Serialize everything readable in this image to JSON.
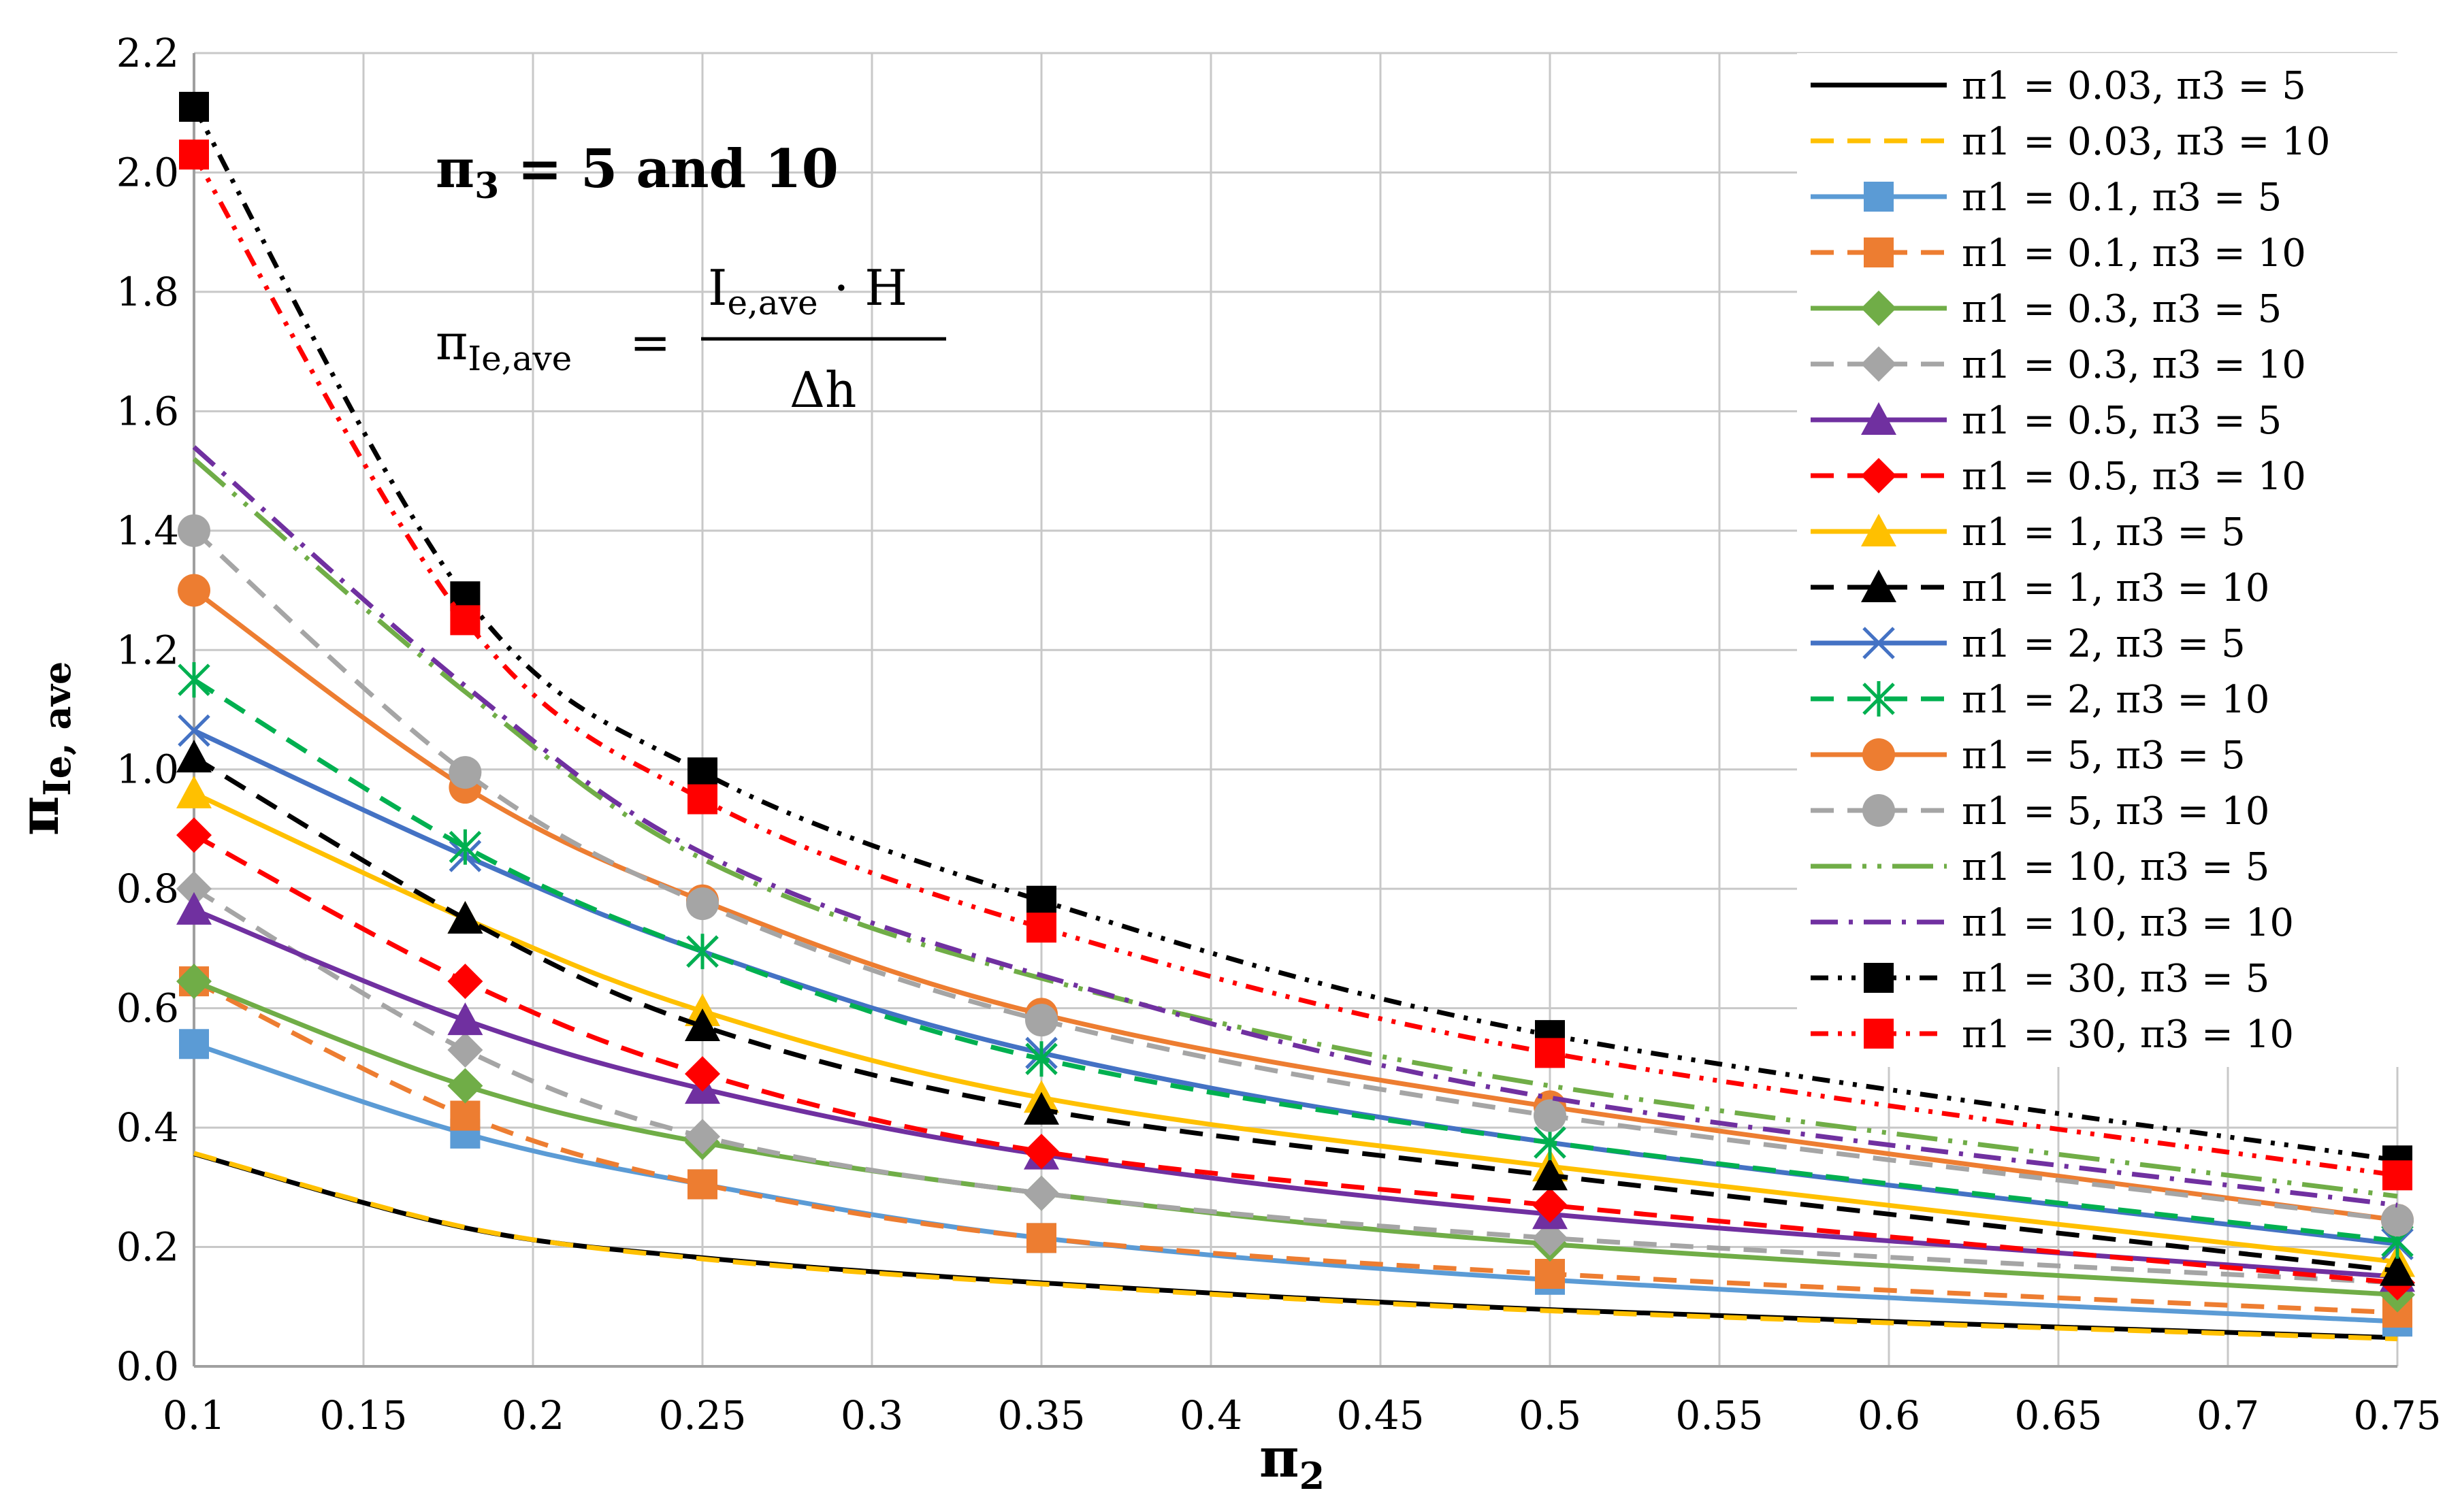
{
  "chart_data": {
    "type": "line",
    "title": "",
    "xlabel": "π2",
    "xlabel_main": "π",
    "xlabel_sub": "2",
    "ylabel": "πIe, ave",
    "ylabel_main": "π",
    "ylabel_sub": "Ie, ave",
    "xlim": [
      0.1,
      0.75
    ],
    "ylim": [
      0.0,
      2.2
    ],
    "xticks": [
      "0.1",
      "0.15",
      "0.2",
      "0.25",
      "0.3",
      "0.35",
      "0.4",
      "0.45",
      "0.5",
      "0.55",
      "0.6",
      "0.65",
      "0.7",
      "0.75"
    ],
    "yticks": [
      "0.0",
      "0.2",
      "0.4",
      "0.6",
      "0.8",
      "1.0",
      "1.2",
      "1.4",
      "1.6",
      "1.8",
      "2.0",
      "2.2"
    ],
    "grid": true,
    "legend_position": "right",
    "annotations": {
      "pi3_main": "π",
      "pi3_sub": "3",
      "pi3_rest": " = 5 and 10",
      "formula_lhs_main": "π",
      "formula_lhs_sub": "Ie,ave",
      "formula_eq": "=",
      "formula_num_main": "I",
      "formula_num_sub": "e,ave",
      "formula_num_rest": " · H",
      "formula_den": "Δh"
    },
    "x": [
      0.1,
      0.18,
      0.25,
      0.35,
      0.5,
      0.75
    ],
    "series": [
      {
        "name": "π1 = 0.03, π3 = 5",
        "color": "#000000",
        "dash": "solid",
        "marker": "none",
        "values": [
          0.356,
          0.232,
          0.182,
          0.14,
          0.095,
          0.048
        ]
      },
      {
        "name": "π1 = 0.03, π3 = 10",
        "color": "#ffc000",
        "dash": "dash",
        "marker": "none",
        "values": [
          0.357,
          0.233,
          0.18,
          0.138,
          0.093,
          0.046
        ]
      },
      {
        "name": "π1  = 0.1, π3 = 5",
        "color": "#5b9bd5",
        "dash": "solid",
        "marker": "square",
        "values": [
          0.54,
          0.39,
          0.305,
          0.215,
          0.145,
          0.075
        ]
      },
      {
        "name": "π1 = 0.1, π3 = 10",
        "color": "#ed7d31",
        "dash": "dash",
        "marker": "square",
        "values": [
          0.645,
          0.42,
          0.305,
          0.215,
          0.155,
          0.09
        ]
      },
      {
        "name": "π1 = 0.3, π3 = 5",
        "color": "#70ad47",
        "dash": "solid",
        "marker": "diamond",
        "values": [
          0.645,
          0.47,
          0.375,
          0.29,
          0.205,
          0.12
        ]
      },
      {
        "name": "π1 = 0.3, π3 = 10",
        "color": "#a5a5a5",
        "dash": "dash",
        "marker": "diamond",
        "values": [
          0.8,
          0.53,
          0.385,
          0.29,
          0.215,
          0.14
        ]
      },
      {
        "name": "π1 = 0.5, π3 = 5",
        "color": "#7030a0",
        "dash": "solid",
        "marker": "triangle",
        "values": [
          0.765,
          0.58,
          0.465,
          0.355,
          0.255,
          0.15
        ]
      },
      {
        "name": "π1 = 0.5, π3 = 10",
        "color": "#ff0000",
        "dash": "dash",
        "marker": "diamond",
        "values": [
          0.89,
          0.645,
          0.49,
          0.36,
          0.27,
          0.14
        ]
      },
      {
        "name": "π1 = 1, π3 = 5",
        "color": "#ffc000",
        "dash": "solid",
        "marker": "triangle",
        "values": [
          0.96,
          0.75,
          0.595,
          0.45,
          0.335,
          0.175
        ]
      },
      {
        "name": "π1 = 1, π3 = 10",
        "color": "#000000",
        "dash": "dash",
        "marker": "triangle",
        "values": [
          1.02,
          0.75,
          0.57,
          0.43,
          0.32,
          0.16
        ]
      },
      {
        "name": "π1 = 2, π3 = 5",
        "color": "#4472c4",
        "dash": "solid",
        "marker": "x",
        "values": [
          1.065,
          0.855,
          0.695,
          0.525,
          0.375,
          0.205
        ]
      },
      {
        "name": "π1 = 2, π3 = 10",
        "color": "#00b050",
        "dash": "dash",
        "marker": "star",
        "values": [
          1.15,
          0.87,
          0.695,
          0.515,
          0.375,
          0.21
        ]
      },
      {
        "name": "π1 = 5, π3 = 5",
        "color": "#ed7d31",
        "dash": "solid",
        "marker": "circle",
        "values": [
          1.3,
          0.97,
          0.78,
          0.59,
          0.435,
          0.245
        ]
      },
      {
        "name": "π1 = 5, π3 = 10",
        "color": "#a5a5a5",
        "dash": "dash",
        "marker": "circle",
        "values": [
          1.4,
          0.995,
          0.775,
          0.58,
          0.42,
          0.245
        ]
      },
      {
        "name": "π1 = 10, π3 = 5",
        "color": "#70ad47",
        "dash": "longdashdotdot",
        "marker": "none",
        "values": [
          1.52,
          1.13,
          0.85,
          0.65,
          0.47,
          0.285
        ]
      },
      {
        "name": "π1 = 10, π3 = 10",
        "color": "#7030a0",
        "dash": "dashdot",
        "marker": "none",
        "values": [
          1.54,
          1.14,
          0.86,
          0.655,
          0.45,
          0.27
        ]
      },
      {
        "name": "π1 = 30, π3 = 5",
        "color": "#000000",
        "dash": "dashdotdot",
        "marker": "square",
        "values": [
          2.11,
          1.29,
          0.995,
          0.78,
          0.555,
          0.345
        ]
      },
      {
        "name": "π1 = 30, π3 = 10",
        "color": "#ff0000",
        "dash": "dashdotdot",
        "marker": "square",
        "values": [
          2.03,
          1.25,
          0.95,
          0.735,
          0.525,
          0.32
        ]
      }
    ]
  }
}
